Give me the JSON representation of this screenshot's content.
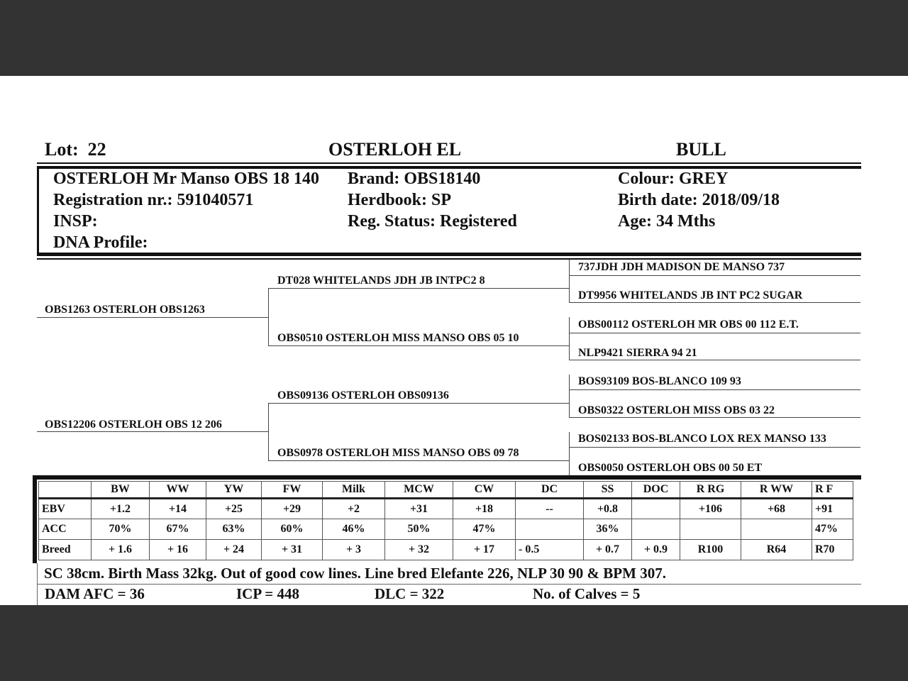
{
  "header": {
    "lot_label": "Lot:",
    "lot": "22",
    "prefix": "OSTERLOH EL",
    "category": "BULL"
  },
  "animal": {
    "name": "OSTERLOH Mr Manso OBS 18 140",
    "brand": "Brand:  OBS18140",
    "colour": "Colour:  GREY",
    "registration": "Registration nr.: 591040571",
    "herdbook": "Herdbook: SP",
    "birth_date": "Birth date:  2018/09/18",
    "insp": "INSP:",
    "reg_status": "Reg. Status: Registered",
    "age": "Age: 34 Mths",
    "dna": "DNA Profile:"
  },
  "pedigree": {
    "sire": "OBS1263 OSTERLOH OBS1263",
    "dam": "OBS12206 OSTERLOH OBS 12 206",
    "grandparents": [
      "DT028 WHITELANDS JDH JB INTPC2 8",
      "OBS0510 OSTERLOH MISS MANSO OBS 05 10",
      "OBS09136 OSTERLOH OBS09136",
      "OBS0978 OSTERLOH MISS MANSO OBS 09 78"
    ],
    "great_grandparents": [
      "737JDH JDH MADISON DE MANSO 737",
      "DT9956 WHITELANDS JB INT PC2 SUGAR",
      "OBS00112 OSTERLOH MR OBS 00 112 E.T.",
      "NLP9421 SIERRA 94 21",
      "BOS93109 BOS-BLANCO 109 93",
      "OBS0322 OSTERLOH MISS OBS 03 22",
      "BOS02133 BOS-BLANCO LOX REX MANSO 133",
      "OBS0050 OSTERLOH OBS 00 50 ET"
    ]
  },
  "ebv_table": {
    "columns": [
      "",
      "BW",
      "WW",
      "YW",
      "FW",
      "Milk",
      "MCW",
      "CW",
      "DC",
      "SS",
      "DOC",
      "R RG",
      "R WW",
      "R F"
    ],
    "rows": [
      [
        "EBV",
        "+1.2",
        "+14",
        "+25",
        "+29",
        "+2",
        "+31",
        "+18",
        "--",
        "+0.8",
        "",
        "+106",
        "+68",
        "+91"
      ],
      [
        "ACC",
        "70%",
        "67%",
        "63%",
        "60%",
        "46%",
        "50%",
        "47%",
        "",
        "36%",
        "",
        "",
        "",
        "47%"
      ],
      [
        "Breed",
        "+ 1.6",
        "+ 16",
        "+ 24",
        "+ 31",
        "+ 3",
        "+ 32",
        "+ 17",
        "- 0.5",
        "+ 0.7",
        "+ 0.9",
        "R100",
        "R64",
        "R70"
      ]
    ]
  },
  "comments": "SC 38cm. Birth Mass 32kg. Out of good cow lines. Line bred Elefante 226, NLP 30 90 & BPM 307.",
  "dam_stats": {
    "afc": "DAM AFC = 36",
    "icp": "ICP = 448",
    "dlc": "DLC = 322",
    "calves": "No. of Calves = 5"
  }
}
